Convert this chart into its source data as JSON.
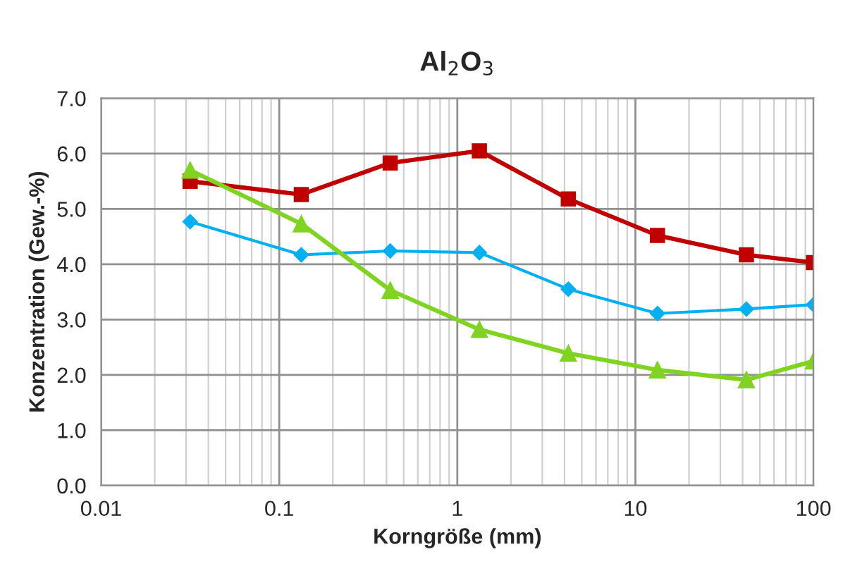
{
  "chart_data": {
    "type": "line",
    "title": "Al$_{2}$O$_{3}$",
    "xlabel": "Korngröße (mm)",
    "ylabel": "Konzentration (Gew.-%)",
    "log": "x",
    "xlim": [
      0.01,
      100
    ],
    "xticks": [
      0.01,
      0.1,
      1,
      10,
      100
    ],
    "ylim": [
      0,
      7
    ],
    "yticks": [
      {
        "value": 0,
        "label": "0.0"
      },
      {
        "value": 1,
        "label": "1.0"
      },
      {
        "value": 2,
        "label": "2.0"
      },
      {
        "value": 3,
        "label": "3.0"
      },
      {
        "value": 4,
        "label": "4.0"
      },
      {
        "value": 5,
        "label": "5.0"
      },
      {
        "value": 6,
        "label": "6.0"
      },
      {
        "value": 7,
        "label": "7.0"
      }
    ],
    "grid": true,
    "legend": false,
    "line_style": "solid",
    "x": [
      0.0316,
      0.133,
      0.42,
      1.33,
      4.2,
      13.3,
      42,
      100
    ],
    "series": [
      {
        "color": "#c00000",
        "marker": "square",
        "values": [
          5.5,
          5.26,
          5.83,
          6.05,
          5.18,
          4.52,
          4.17,
          4.03
        ]
      },
      {
        "color": "#00b0f0",
        "marker": "diamond",
        "values": [
          4.77,
          4.17,
          4.24,
          4.21,
          3.55,
          3.11,
          3.19,
          3.27
        ]
      },
      {
        "color": "#7fd321",
        "marker": "triangle",
        "values": [
          5.7,
          4.73,
          3.53,
          2.82,
          2.39,
          2.09,
          1.91,
          2.25
        ]
      }
    ]
  }
}
